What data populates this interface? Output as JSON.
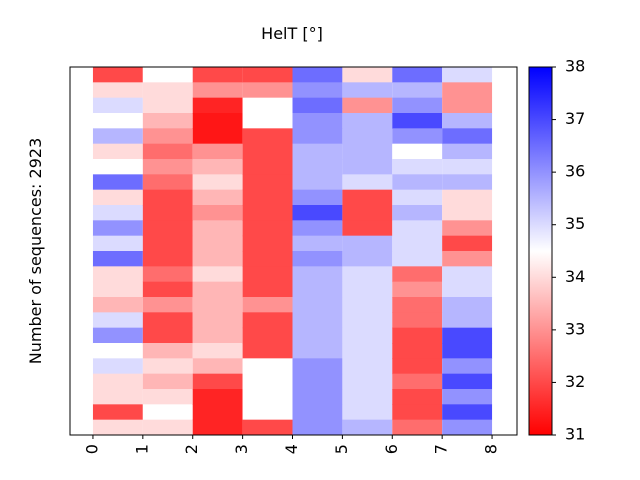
{
  "chart_data": {
    "type": "heatmap",
    "title": "HelT [°]",
    "ylabel": "Number of sequences: 2923",
    "xticks": [
      0,
      1,
      2,
      3,
      4,
      5,
      6,
      7,
      8
    ],
    "xlim": [
      -0.46,
      8.5
    ],
    "cmap": [
      "#ff0000",
      "#ffffff",
      "#0000ff"
    ],
    "clim": [
      31,
      38
    ],
    "colorbar_ticks": [
      31,
      32,
      33,
      34,
      35,
      36,
      37,
      38
    ],
    "values": [
      [
        32,
        34,
        35,
        34.5,
        35.5,
        34,
        34.5,
        36.5,
        34,
        35,
        36,
        35,
        36.5,
        34,
        34,
        33.5,
        35,
        36,
        34.5,
        35,
        34,
        34,
        32,
        34
      ],
      [
        34.5,
        34,
        34,
        33.5,
        33,
        32.5,
        33,
        32.5,
        32,
        32,
        32,
        32,
        32,
        32.5,
        32,
        33,
        32,
        32,
        33.5,
        34,
        33.5,
        34,
        34.5,
        34
      ],
      [
        32,
        33,
        31.5,
        31.3,
        31.3,
        33,
        33.5,
        34,
        33.5,
        33,
        33.5,
        33.5,
        33.5,
        34,
        33.5,
        33.5,
        33.5,
        33.5,
        34,
        33.5,
        32,
        31.5,
        31.5,
        31.5
      ],
      [
        32,
        33,
        34.5,
        34.5,
        32,
        32,
        32,
        32,
        32,
        32,
        32,
        32,
        32,
        32,
        32,
        33,
        32,
        32,
        32,
        34.5,
        34.5,
        34.5,
        34.5,
        32
      ],
      [
        36.5,
        36,
        36.5,
        36,
        36,
        35.5,
        35.5,
        35.5,
        36,
        37,
        36,
        35.5,
        36,
        35.5,
        35.5,
        35.5,
        35.5,
        35.5,
        35.5,
        36,
        36,
        36,
        36,
        36
      ],
      [
        34,
        35.5,
        33,
        35.5,
        35.5,
        35.5,
        35.5,
        35,
        32,
        32,
        32,
        35.5,
        35.5,
        35,
        35,
        35,
        35,
        35,
        35,
        35,
        35,
        35,
        35,
        35.5
      ],
      [
        36.5,
        35.5,
        36,
        37,
        36,
        34.5,
        35,
        35.5,
        35,
        35.5,
        35,
        35,
        35,
        32.5,
        33,
        32.5,
        32.5,
        32,
        32,
        32,
        32.5,
        32,
        32,
        32.5
      ],
      [
        35,
        33,
        33,
        35.5,
        36.5,
        35.5,
        35,
        35.5,
        34,
        34,
        33,
        32,
        33,
        35,
        35,
        35.5,
        35.5,
        37,
        37,
        36,
        37,
        36,
        37,
        36
      ]
    ]
  }
}
